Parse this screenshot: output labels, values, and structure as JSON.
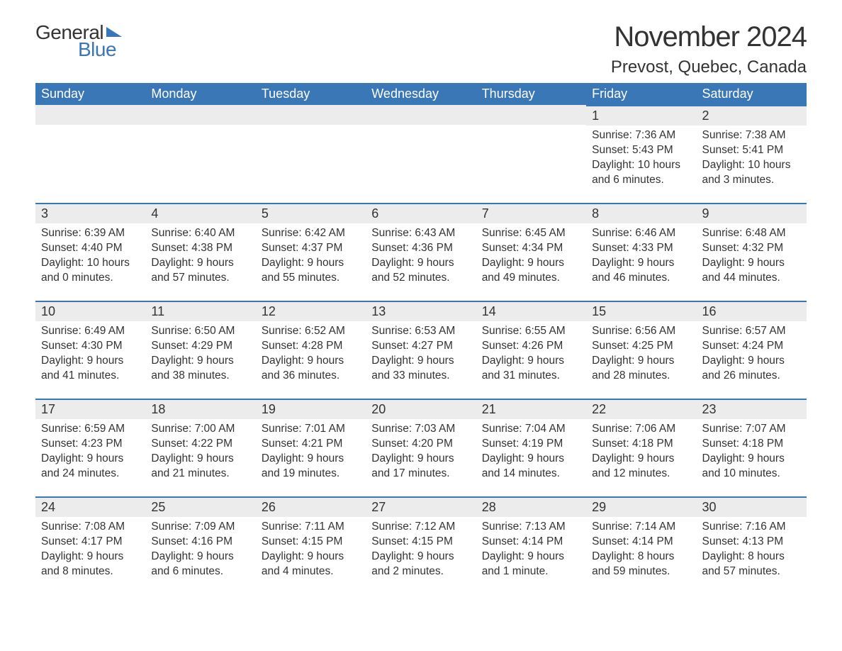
{
  "logo": {
    "general": "General",
    "blue": "Blue"
  },
  "title": "November 2024",
  "location": "Prevost, Quebec, Canada",
  "colors": {
    "header_bg": "#3a77b7",
    "header_text": "#ffffff",
    "day_header_bg": "#ececec",
    "day_border_top": "#3a77b7",
    "text": "#333333",
    "background": "#ffffff"
  },
  "typography": {
    "title_fontsize": 40,
    "location_fontsize": 24,
    "weekday_fontsize": 18,
    "daynum_fontsize": 18,
    "body_fontsize": 15.5
  },
  "weekdays": [
    "Sunday",
    "Monday",
    "Tuesday",
    "Wednesday",
    "Thursday",
    "Friday",
    "Saturday"
  ],
  "weeks": [
    [
      null,
      null,
      null,
      null,
      null,
      {
        "day": 1,
        "sunrise": "Sunrise: 7:36 AM",
        "sunset": "Sunset: 5:43 PM",
        "daylight": "Daylight: 10 hours and 6 minutes."
      },
      {
        "day": 2,
        "sunrise": "Sunrise: 7:38 AM",
        "sunset": "Sunset: 5:41 PM",
        "daylight": "Daylight: 10 hours and 3 minutes."
      }
    ],
    [
      {
        "day": 3,
        "sunrise": "Sunrise: 6:39 AM",
        "sunset": "Sunset: 4:40 PM",
        "daylight": "Daylight: 10 hours and 0 minutes."
      },
      {
        "day": 4,
        "sunrise": "Sunrise: 6:40 AM",
        "sunset": "Sunset: 4:38 PM",
        "daylight": "Daylight: 9 hours and 57 minutes."
      },
      {
        "day": 5,
        "sunrise": "Sunrise: 6:42 AM",
        "sunset": "Sunset: 4:37 PM",
        "daylight": "Daylight: 9 hours and 55 minutes."
      },
      {
        "day": 6,
        "sunrise": "Sunrise: 6:43 AM",
        "sunset": "Sunset: 4:36 PM",
        "daylight": "Daylight: 9 hours and 52 minutes."
      },
      {
        "day": 7,
        "sunrise": "Sunrise: 6:45 AM",
        "sunset": "Sunset: 4:34 PM",
        "daylight": "Daylight: 9 hours and 49 minutes."
      },
      {
        "day": 8,
        "sunrise": "Sunrise: 6:46 AM",
        "sunset": "Sunset: 4:33 PM",
        "daylight": "Daylight: 9 hours and 46 minutes."
      },
      {
        "day": 9,
        "sunrise": "Sunrise: 6:48 AM",
        "sunset": "Sunset: 4:32 PM",
        "daylight": "Daylight: 9 hours and 44 minutes."
      }
    ],
    [
      {
        "day": 10,
        "sunrise": "Sunrise: 6:49 AM",
        "sunset": "Sunset: 4:30 PM",
        "daylight": "Daylight: 9 hours and 41 minutes."
      },
      {
        "day": 11,
        "sunrise": "Sunrise: 6:50 AM",
        "sunset": "Sunset: 4:29 PM",
        "daylight": "Daylight: 9 hours and 38 minutes."
      },
      {
        "day": 12,
        "sunrise": "Sunrise: 6:52 AM",
        "sunset": "Sunset: 4:28 PM",
        "daylight": "Daylight: 9 hours and 36 minutes."
      },
      {
        "day": 13,
        "sunrise": "Sunrise: 6:53 AM",
        "sunset": "Sunset: 4:27 PM",
        "daylight": "Daylight: 9 hours and 33 minutes."
      },
      {
        "day": 14,
        "sunrise": "Sunrise: 6:55 AM",
        "sunset": "Sunset: 4:26 PM",
        "daylight": "Daylight: 9 hours and 31 minutes."
      },
      {
        "day": 15,
        "sunrise": "Sunrise: 6:56 AM",
        "sunset": "Sunset: 4:25 PM",
        "daylight": "Daylight: 9 hours and 28 minutes."
      },
      {
        "day": 16,
        "sunrise": "Sunrise: 6:57 AM",
        "sunset": "Sunset: 4:24 PM",
        "daylight": "Daylight: 9 hours and 26 minutes."
      }
    ],
    [
      {
        "day": 17,
        "sunrise": "Sunrise: 6:59 AM",
        "sunset": "Sunset: 4:23 PM",
        "daylight": "Daylight: 9 hours and 24 minutes."
      },
      {
        "day": 18,
        "sunrise": "Sunrise: 7:00 AM",
        "sunset": "Sunset: 4:22 PM",
        "daylight": "Daylight: 9 hours and 21 minutes."
      },
      {
        "day": 19,
        "sunrise": "Sunrise: 7:01 AM",
        "sunset": "Sunset: 4:21 PM",
        "daylight": "Daylight: 9 hours and 19 minutes."
      },
      {
        "day": 20,
        "sunrise": "Sunrise: 7:03 AM",
        "sunset": "Sunset: 4:20 PM",
        "daylight": "Daylight: 9 hours and 17 minutes."
      },
      {
        "day": 21,
        "sunrise": "Sunrise: 7:04 AM",
        "sunset": "Sunset: 4:19 PM",
        "daylight": "Daylight: 9 hours and 14 minutes."
      },
      {
        "day": 22,
        "sunrise": "Sunrise: 7:06 AM",
        "sunset": "Sunset: 4:18 PM",
        "daylight": "Daylight: 9 hours and 12 minutes."
      },
      {
        "day": 23,
        "sunrise": "Sunrise: 7:07 AM",
        "sunset": "Sunset: 4:18 PM",
        "daylight": "Daylight: 9 hours and 10 minutes."
      }
    ],
    [
      {
        "day": 24,
        "sunrise": "Sunrise: 7:08 AM",
        "sunset": "Sunset: 4:17 PM",
        "daylight": "Daylight: 9 hours and 8 minutes."
      },
      {
        "day": 25,
        "sunrise": "Sunrise: 7:09 AM",
        "sunset": "Sunset: 4:16 PM",
        "daylight": "Daylight: 9 hours and 6 minutes."
      },
      {
        "day": 26,
        "sunrise": "Sunrise: 7:11 AM",
        "sunset": "Sunset: 4:15 PM",
        "daylight": "Daylight: 9 hours and 4 minutes."
      },
      {
        "day": 27,
        "sunrise": "Sunrise: 7:12 AM",
        "sunset": "Sunset: 4:15 PM",
        "daylight": "Daylight: 9 hours and 2 minutes."
      },
      {
        "day": 28,
        "sunrise": "Sunrise: 7:13 AM",
        "sunset": "Sunset: 4:14 PM",
        "daylight": "Daylight: 9 hours and 1 minute."
      },
      {
        "day": 29,
        "sunrise": "Sunrise: 7:14 AM",
        "sunset": "Sunset: 4:14 PM",
        "daylight": "Daylight: 8 hours and 59 minutes."
      },
      {
        "day": 30,
        "sunrise": "Sunrise: 7:16 AM",
        "sunset": "Sunset: 4:13 PM",
        "daylight": "Daylight: 8 hours and 57 minutes."
      }
    ]
  ]
}
